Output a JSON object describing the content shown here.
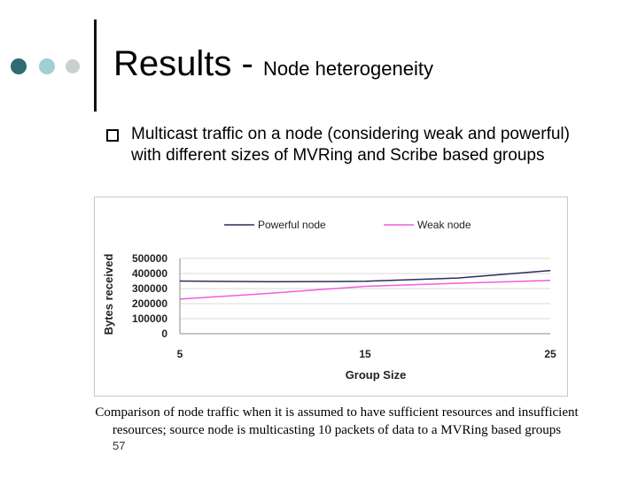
{
  "slide": {
    "title_main": "Results - ",
    "title_sub": "Node heterogeneity",
    "bullet_text": "Multicast traffic on a node (considering weak and powerful) with different sizes of MVRing and Scribe based groups",
    "caption": "Comparison of node traffic when it is assumed to have sufficient resources and insufficient resources; source node is multicasting 10 packets of data to a MVRing based groups",
    "slide_number": "57"
  },
  "colors": {
    "dot_dark": "#2e6b73",
    "dot_light": "#9fcfd2",
    "dot_grey": "#c9d0d2",
    "powerful": "#2b2f5e",
    "weak": "#ee5fd9"
  },
  "chart_data": {
    "type": "line",
    "xlabel": "Group Size",
    "ylabel": "Bytes received",
    "x": [
      5,
      10,
      15,
      20,
      25
    ],
    "x_ticks": [
      5,
      15,
      25
    ],
    "y_ticks": [
      0,
      100000,
      200000,
      300000,
      400000,
      500000
    ],
    "xlim": [
      5,
      25
    ],
    "ylim": [
      0,
      500000
    ],
    "legend_position": "top",
    "grid": true,
    "series": [
      {
        "name": "Powerful node",
        "color": "#2b2f5e",
        "values": [
          350000,
          345000,
          348000,
          370000,
          420000
        ]
      },
      {
        "name": "Weak node",
        "color": "#ee5fd9",
        "values": [
          230000,
          270000,
          315000,
          335000,
          355000
        ]
      }
    ]
  }
}
